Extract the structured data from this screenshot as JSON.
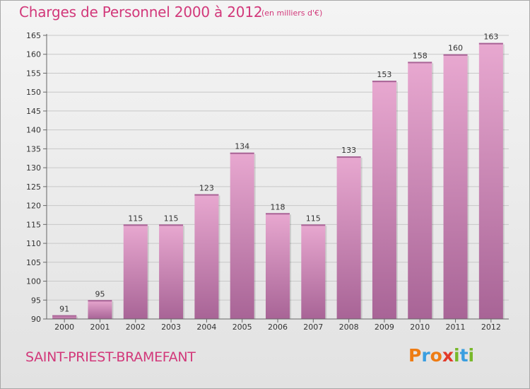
{
  "header": {
    "title": "Charges de Personnel 2000 à 2012",
    "unit": "(en milliers d'€)"
  },
  "footer": {
    "town": "SAINT-PRIEST-BRAMEFANT",
    "logo": [
      "P",
      "r",
      "o",
      "x",
      "i",
      "t",
      "i"
    ]
  },
  "colors": {
    "accent": "#d2387a",
    "bar_top": "#e8a8d0",
    "bar_bottom": "#a86496",
    "logo_letters": [
      "#ee7c14",
      "#3a9ee0",
      "#ee7c14",
      "#e23a2a",
      "#78b82a",
      "#3a9ee0",
      "#78b82a"
    ]
  },
  "chart_data": {
    "type": "bar",
    "title": "Charges de Personnel 2000 à 2012",
    "subtitle": "(en milliers d'€)",
    "categories": [
      "2000",
      "2001",
      "2002",
      "2003",
      "2004",
      "2005",
      "2006",
      "2007",
      "2008",
      "2009",
      "2010",
      "2011",
      "2012"
    ],
    "values": [
      91,
      95,
      115,
      115,
      123,
      134,
      118,
      115,
      133,
      153,
      158,
      160,
      163
    ],
    "ylim": [
      90,
      165
    ],
    "yticks": [
      90,
      95,
      100,
      105,
      110,
      115,
      120,
      125,
      130,
      135,
      140,
      145,
      150,
      155,
      160,
      165
    ],
    "grid": true,
    "data_labels": true
  }
}
